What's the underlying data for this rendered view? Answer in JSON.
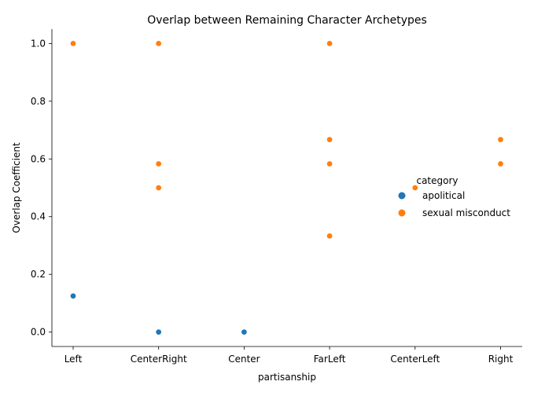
{
  "chart_data": {
    "type": "scatter",
    "title": "Overlap between Remaining Character Archetypes",
    "xlabel": "partisanship",
    "ylabel": "Overlap Coefficient",
    "categories": [
      "Left",
      "CenterRight",
      "Center",
      "FarLeft",
      "CenterLeft",
      "Right"
    ],
    "ylim": [
      -0.05,
      1.05
    ],
    "yticks": [
      "0.0",
      "0.2",
      "0.4",
      "0.6",
      "0.8",
      "1.0"
    ],
    "grid": false,
    "legend": {
      "title": "category",
      "placement": "right",
      "entries": [
        "apolitical",
        "sexual misconduct"
      ]
    },
    "series": [
      {
        "name": "apolitical",
        "color": "#1f77b4",
        "points": [
          {
            "x": "Left",
            "y": 0.125
          },
          {
            "x": "CenterRight",
            "y": 0.0
          },
          {
            "x": "Center",
            "y": 0.0
          }
        ]
      },
      {
        "name": "sexual misconduct",
        "color": "#ff7f0e",
        "points": [
          {
            "x": "Left",
            "y": 1.0
          },
          {
            "x": "CenterRight",
            "y": 1.0
          },
          {
            "x": "CenterRight",
            "y": 0.583
          },
          {
            "x": "CenterRight",
            "y": 0.5
          },
          {
            "x": "FarLeft",
            "y": 1.0
          },
          {
            "x": "FarLeft",
            "y": 0.667
          },
          {
            "x": "FarLeft",
            "y": 0.583
          },
          {
            "x": "FarLeft",
            "y": 0.333
          },
          {
            "x": "CenterLeft",
            "y": 0.5
          },
          {
            "x": "Right",
            "y": 0.667
          },
          {
            "x": "Right",
            "y": 0.583
          }
        ]
      }
    ]
  }
}
